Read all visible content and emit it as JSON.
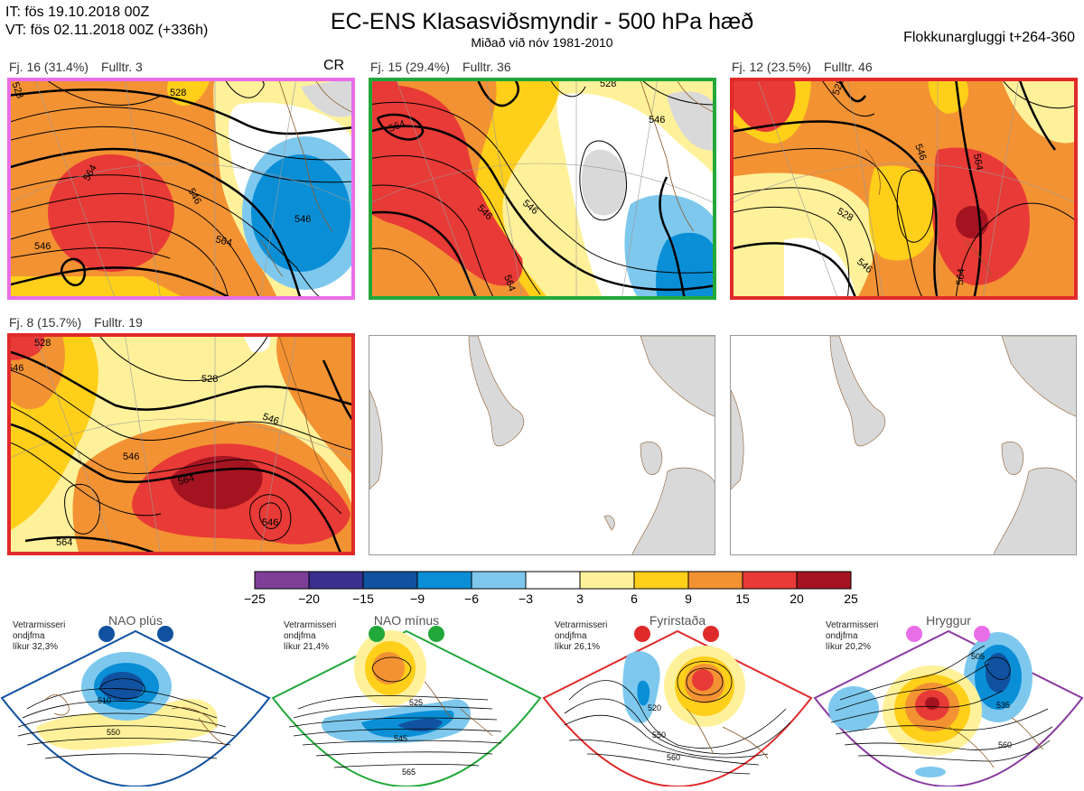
{
  "header": {
    "it_line": "IT: fös 19.10.2018 00Z",
    "vt_line": "VT: fös 02.11.2018 00Z  (+336h)",
    "title": "EC-ENS Klasasviðsmyndir - 500 hPa hæð",
    "subtitle": "Miðað við nóv 1981-2010",
    "window": "Flokkunargluggi t+264-360"
  },
  "panels": [
    {
      "label": "Fj. 16 (31.4%)",
      "members": "Fulltr. 3",
      "regime_tag": "CR",
      "border_color": "#e86ee8",
      "contour_labels": [
        "528",
        "546",
        "564",
        "546",
        "564",
        "528",
        "546"
      ]
    },
    {
      "label": "Fj. 15 (29.4%)",
      "members": "Fulltr. 36",
      "border_color": "#22a83a",
      "contour_labels": [
        "564",
        "546",
        "528",
        "546",
        "546",
        "564",
        "564"
      ]
    },
    {
      "label": "Fj. 12 (23.5%)",
      "members": "Fulltr. 46",
      "border_color": "#e02a2a",
      "contour_labels": [
        "528",
        "546",
        "564",
        "528",
        "546",
        "564"
      ]
    },
    {
      "label": "Fj. 8 (15.7%)",
      "members": "Fulltr. 19",
      "border_color": "#e02a2a",
      "contour_labels": [
        "528",
        "546",
        "528",
        "546",
        "546",
        "564",
        "546",
        "564"
      ]
    }
  ],
  "colorbar": {
    "ticks": [
      "−25",
      "−20",
      "−15",
      "−9",
      "−6",
      "−3",
      "3",
      "6",
      "9",
      "15",
      "20",
      "25"
    ],
    "colors": [
      "#7e3f98",
      "#3b2f8f",
      "#1152a0",
      "#0a8fd6",
      "#7ec8ee",
      "#ffffff",
      "#fff19a",
      "#ffcf1a",
      "#f39233",
      "#e83a36",
      "#a41420"
    ]
  },
  "regimes": [
    {
      "name": "NAO plús",
      "text_line1": "Vetrarmisseri",
      "text_line2": "ondjfma",
      "text_line3": "líkur 32,3%",
      "dot_color": "#1152a0",
      "frame_color": "#1152a0",
      "contour_labels": [
        "510",
        "550"
      ]
    },
    {
      "name": "NAO mínus",
      "text_line1": "Vetrarmisseri",
      "text_line2": "ondjfma",
      "text_line3": "líkur 21,4%",
      "dot_color": "#22a83a",
      "frame_color": "#22a83a",
      "contour_labels": [
        "525",
        "545",
        "565"
      ]
    },
    {
      "name": "Fyrirstaða",
      "text_line1": "Vetrarmisseri",
      "text_line2": "ondjfma",
      "text_line3": "líkur 26,1%",
      "dot_color": "#e02a2a",
      "frame_color": "#e02a2a",
      "contour_labels": [
        "520",
        "550",
        "560"
      ]
    },
    {
      "name": "Hryggur",
      "text_line1": "Vetrarmisseri",
      "text_line2": "ondjfma",
      "text_line3": "líkur 20,2%",
      "dot_color": "#e86ee8",
      "frame_color": "#8a3aa0",
      "contour_labels": [
        "505",
        "535",
        "560"
      ]
    }
  ],
  "chart_data": {
    "type": "heatmap",
    "title": "EC-ENS Klasasviðsmyndir - 500 hPa hæð",
    "subtitle": "Miðað við nóv 1981-2010",
    "clusters": [
      {
        "name": "Fj. 16",
        "percent": 31.4,
        "representative_member": 3,
        "regime": "CR"
      },
      {
        "name": "Fj. 15",
        "percent": 29.4,
        "representative_member": 36
      },
      {
        "name": "Fj. 12",
        "percent": 23.5,
        "representative_member": 46
      },
      {
        "name": "Fj. 8",
        "percent": 15.7,
        "representative_member": 19
      }
    ],
    "colorbar_bounds": [
      -25,
      -20,
      -15,
      -9,
      -6,
      -3,
      3,
      6,
      9,
      15,
      20,
      25
    ],
    "regimes": [
      {
        "name": "NAO plús",
        "probability_percent": 32.3
      },
      {
        "name": "NAO mínus",
        "probability_percent": 21.4
      },
      {
        "name": "Fyrirstaða",
        "probability_percent": 26.1
      },
      {
        "name": "Hryggur",
        "probability_percent": 20.2
      }
    ]
  }
}
